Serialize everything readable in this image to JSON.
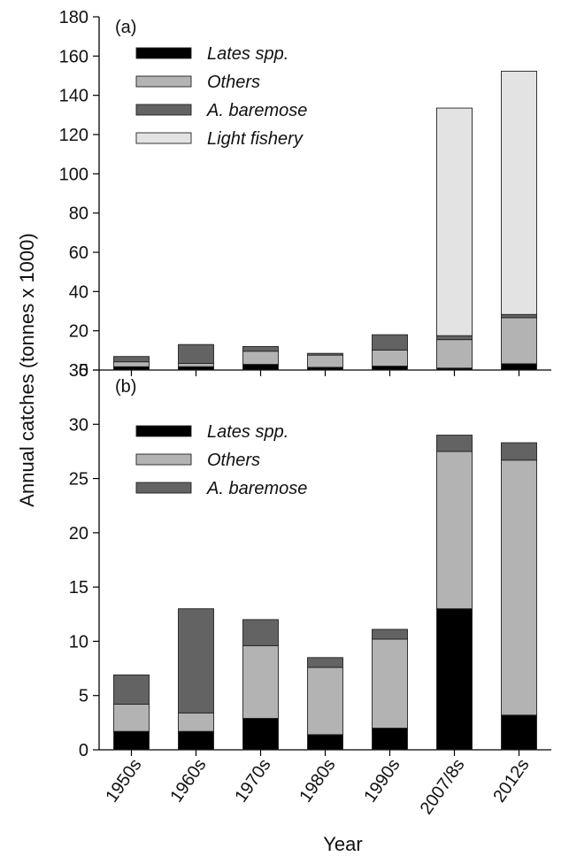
{
  "figure": {
    "ylabel": "Annual catches (tonnes x 1000)",
    "xlabel": "Year"
  },
  "chart_data": [
    {
      "type": "bar",
      "stacked": true,
      "panel_label": "(a)",
      "categories": [
        "1950s",
        "1960s",
        "1970s",
        "1980s",
        "1990s",
        "2007/8s",
        "2012s"
      ],
      "ylim": [
        0,
        180
      ],
      "yticks": [
        0,
        20,
        40,
        60,
        80,
        100,
        120,
        140,
        160,
        180
      ],
      "legend_position": "top-left",
      "series": [
        {
          "name": "Lates spp.",
          "color": "#000000",
          "values": [
            1.7,
            1.7,
            2.9,
            1.4,
            2.0,
            1.0,
            3.2
          ]
        },
        {
          "name": "Others",
          "color": "#b3b3b3",
          "values": [
            2.5,
            1.7,
            6.7,
            6.2,
            8.2,
            14.5,
            23.5
          ]
        },
        {
          "name": "A. baremose",
          "color": "#636363",
          "values": [
            2.7,
            9.6,
            2.4,
            0.9,
            7.8,
            2.0,
            1.6
          ]
        },
        {
          "name": "Light fishery",
          "color": "#e3e3e3",
          "values": [
            0,
            0,
            0,
            0,
            0,
            116,
            124
          ]
        }
      ]
    },
    {
      "type": "bar",
      "stacked": true,
      "panel_label": "(b)",
      "categories": [
        "1950s",
        "1960s",
        "1970s",
        "1980s",
        "1990s",
        "2007/8s",
        "2012s"
      ],
      "ylim": [
        0,
        35
      ],
      "yticks": [
        0,
        5,
        10,
        15,
        20,
        25,
        30,
        35
      ],
      "legend_position": "top-left",
      "series": [
        {
          "name": "Lates spp.",
          "color": "#000000",
          "values": [
            1.7,
            1.7,
            2.9,
            1.4,
            2.0,
            13.0,
            3.2
          ]
        },
        {
          "name": "Others",
          "color": "#b3b3b3",
          "values": [
            2.5,
            1.7,
            6.7,
            6.2,
            8.2,
            14.5,
            23.5
          ]
        },
        {
          "name": "A. baremose",
          "color": "#636363",
          "values": [
            2.7,
            9.6,
            2.4,
            0.9,
            0.9,
            1.5,
            1.6
          ]
        }
      ]
    }
  ]
}
